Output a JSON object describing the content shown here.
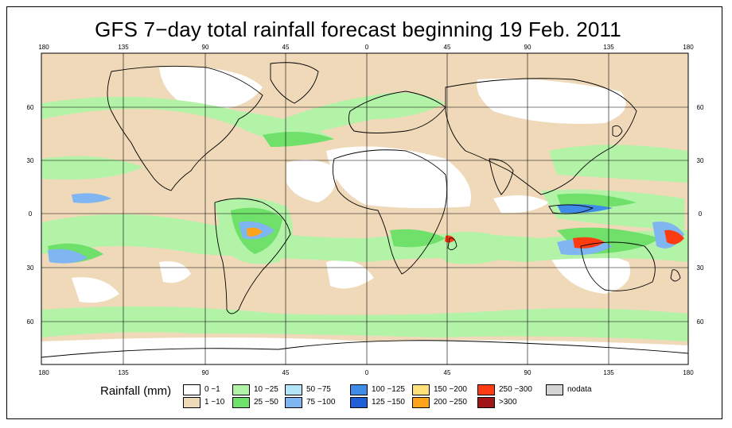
{
  "title": "GFS 7−day total rainfall forecast beginning 19 Feb. 2011",
  "map": {
    "lon_ticks": [
      "180",
      "135",
      "90",
      "45",
      "0",
      "45",
      "90",
      "135",
      "180"
    ],
    "lat_ticks_left": [
      "60",
      "30",
      "0",
      "30",
      "60"
    ],
    "lat_ticks_right": [
      "60",
      "30",
      "0",
      "30",
      "60"
    ]
  },
  "legend": {
    "title": "Rainfall (mm)",
    "items": [
      {
        "label": "0 −1",
        "color": "#ffffff"
      },
      {
        "label": "1 −10",
        "color": "#efd9b9"
      },
      {
        "label": "10 −25",
        "color": "#b2f3a8"
      },
      {
        "label": "25 −50",
        "color": "#6fe06a"
      },
      {
        "label": "50 −75",
        "color": "#b4e4f8"
      },
      {
        "label": "75 −100",
        "color": "#7fb6f2"
      },
      {
        "label": "100 −125",
        "color": "#3f8ce8"
      },
      {
        "label": "125 −150",
        "color": "#1e5fd8"
      },
      {
        "label": "150 −200",
        "color": "#ffe07a"
      },
      {
        "label": "200 −250",
        "color": "#ffa31a"
      },
      {
        "label": "250 −300",
        "color": "#ff3b12"
      },
      {
        "label": ">300",
        "color": "#a01616"
      },
      {
        "label": "nodata",
        "color": "#d4d4d4"
      }
    ]
  }
}
